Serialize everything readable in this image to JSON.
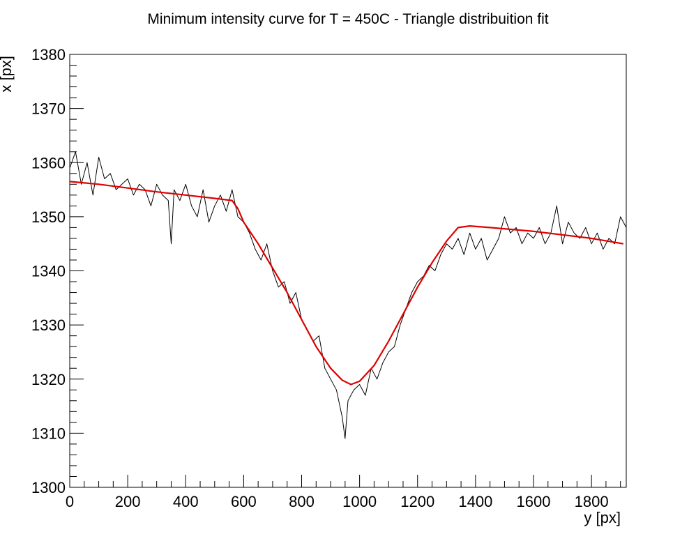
{
  "chart_data": {
    "type": "line",
    "title": "Minimum intensity curve for T = 450C - Triangle distribuition fit",
    "xlabel": "y [px]",
    "ylabel": "x [px]",
    "xlim": [
      0,
      1920
    ],
    "ylim": [
      1300,
      1380
    ],
    "xticks": [
      0,
      200,
      400,
      600,
      800,
      1000,
      1200,
      1400,
      1600,
      1800
    ],
    "yticks": [
      1300,
      1310,
      1320,
      1330,
      1340,
      1350,
      1360,
      1370,
      1380
    ],
    "grid": false,
    "colors": {
      "data": "#000000",
      "fit": "#e00000"
    },
    "series": [
      {
        "role": "data",
        "x": [
          0,
          20,
          40,
          60,
          80,
          100,
          120,
          140,
          160,
          180,
          200,
          220,
          240,
          260,
          280,
          300,
          320,
          340,
          350,
          360,
          380,
          400,
          420,
          440,
          460,
          480,
          500,
          520,
          540,
          560,
          580,
          600,
          620,
          640,
          660,
          680,
          700,
          720,
          740,
          760,
          780,
          800,
          820,
          840,
          860,
          880,
          900,
          920,
          940,
          950,
          960,
          980,
          1000,
          1020,
          1040,
          1060,
          1080,
          1100,
          1120,
          1140,
          1160,
          1180,
          1200,
          1220,
          1240,
          1260,
          1280,
          1300,
          1320,
          1340,
          1360,
          1380,
          1400,
          1420,
          1440,
          1460,
          1480,
          1500,
          1520,
          1540,
          1560,
          1580,
          1600,
          1620,
          1640,
          1660,
          1680,
          1700,
          1720,
          1740,
          1760,
          1780,
          1800,
          1820,
          1840,
          1860,
          1880,
          1900,
          1920
        ],
        "values": [
          1359,
          1362,
          1356,
          1360,
          1354,
          1361,
          1357,
          1358,
          1355,
          1356,
          1357,
          1354,
          1356,
          1355,
          1352,
          1356,
          1354,
          1353,
          1345,
          1355,
          1353,
          1356,
          1352,
          1350,
          1355,
          1349,
          1352,
          1354,
          1351,
          1355,
          1350,
          1349,
          1347,
          1344,
          1342,
          1345,
          1340,
          1337,
          1338,
          1334,
          1336,
          1331,
          1329,
          1327,
          1328,
          1322,
          1320,
          1318,
          1313,
          1309,
          1316,
          1318,
          1319,
          1317,
          1322,
          1320,
          1323,
          1325,
          1326,
          1330,
          1333,
          1336,
          1338,
          1339,
          1341,
          1340,
          1343,
          1345,
          1344,
          1346,
          1343,
          1347,
          1344,
          1346,
          1342,
          1344,
          1346,
          1350,
          1347,
          1348,
          1345,
          1347,
          1346,
          1348,
          1345,
          1347,
          1352,
          1345,
          1349,
          1347,
          1346,
          1348,
          1345,
          1347,
          1344,
          1346,
          1345,
          1350,
          1348
        ]
      },
      {
        "role": "fit",
        "x": [
          0,
          100,
          200,
          300,
          400,
          500,
          560,
          580,
          600,
          650,
          700,
          750,
          800,
          850,
          900,
          940,
          970,
          1000,
          1050,
          1100,
          1150,
          1200,
          1250,
          1300,
          1340,
          1380,
          1450,
          1600,
          1800,
          1910
        ],
        "values": [
          1356.5,
          1356,
          1355.3,
          1354.6,
          1354,
          1353.4,
          1353,
          1351.5,
          1349,
          1345,
          1340.5,
          1336,
          1331,
          1326,
          1322,
          1319.8,
          1319,
          1319.6,
          1322.5,
          1327,
          1332,
          1337,
          1341.5,
          1345.5,
          1348,
          1348.3,
          1348,
          1347.3,
          1346,
          1345
        ]
      }
    ]
  }
}
